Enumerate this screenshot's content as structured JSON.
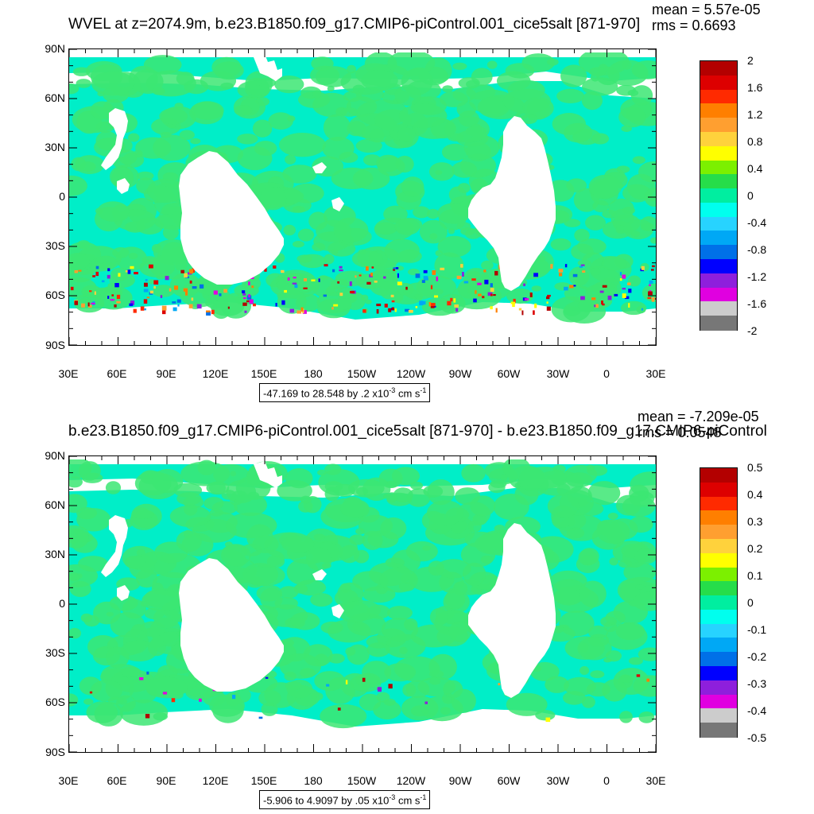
{
  "panels": [
    {
      "title": "WVEL at z=2074.9m, b.e23.B1850.f09_g17.CMIP6-piControl.001_cice5salt [871-970]",
      "mean_label": "mean = 5.57e-05",
      "rms_label": "rms = 0.6693",
      "range_text": "-47.169 to 28.548 by .2",
      "range_scale": "x10",
      "range_exp": "-3",
      "range_units": "cm s",
      "range_units_exp": "-1",
      "colorbar_labels": [
        "2",
        "1.6",
        "1.2",
        "0.8",
        "0.4",
        "0",
        "-0.4",
        "-0.8",
        "-1.2",
        "-1.6",
        "-2"
      ]
    },
    {
      "title": "b.e23.B1850.f09_g17.CMIP6-piControl.001_cice5salt [871-970] - b.e23.B1850.f09_g17.CMIP6-piControl",
      "mean_label": "mean = -7.209e-05",
      "rms_label": "rms = 0.0548",
      "range_text": "-5.906 to 4.9097 by .05",
      "range_scale": "x10",
      "range_exp": "-3",
      "range_units": "cm s",
      "range_units_exp": "-1",
      "colorbar_labels": [
        "0.5",
        "0.4",
        "0.3",
        "0.2",
        "0.1",
        "0",
        "-0.1",
        "-0.2",
        "-0.3",
        "-0.4",
        "-0.5"
      ]
    }
  ],
  "lat_labels": [
    "90N",
    "60N",
    "30N",
    "0",
    "30S",
    "60S",
    "90S"
  ],
  "lon_labels": [
    "30E",
    "60E",
    "90E",
    "120E",
    "150E",
    "180",
    "150W",
    "120W",
    "90W",
    "60W",
    "30W",
    "0",
    "30E"
  ],
  "colors": {
    "palette": [
      "#b30000",
      "#dd0000",
      "#ff2a00",
      "#ff7f00",
      "#ff9f30",
      "#ffd23c",
      "#ffff00",
      "#7cf000",
      "#26dd4a",
      "#00eea0",
      "#00ffee",
      "#27d3ff",
      "#00a8f5",
      "#0070e8",
      "#0000ff",
      "#8e1fdc",
      "#e000e0",
      "#cccccc",
      "#777777"
    ],
    "ocean_main": "#00eec8",
    "ocean_alt": "#3ce673",
    "land": "#ffffff"
  }
}
